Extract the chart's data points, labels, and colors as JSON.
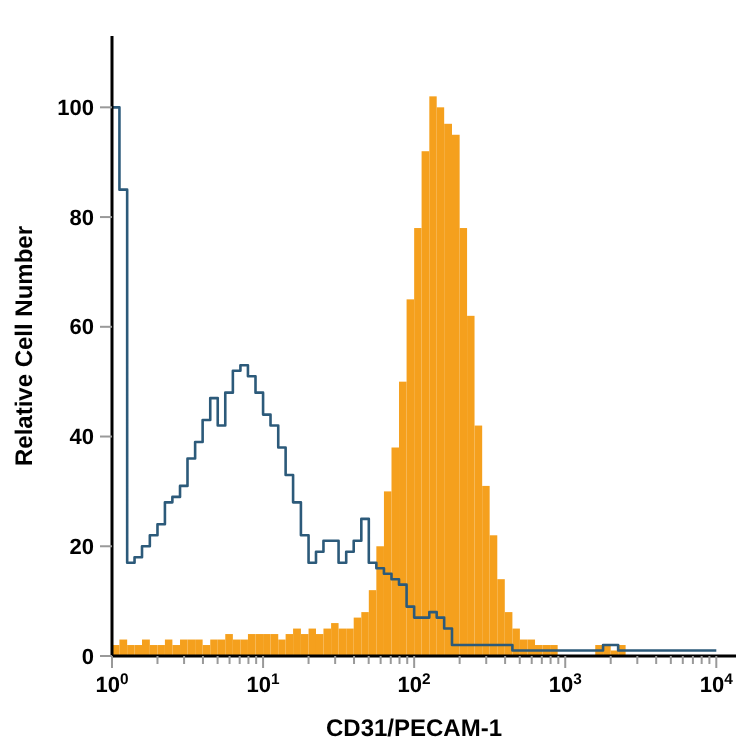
{
  "chart_data": {
    "type": "histogram",
    "xlabel": "CD31/PECAM-1",
    "ylabel": "Relative Cell Number",
    "log": "x",
    "xlim": [
      1,
      13500
    ],
    "ylim": [
      0,
      113
    ],
    "xticks": [
      {
        "value": 1,
        "label": "10$^{0}$"
      },
      {
        "value": 10,
        "label": "10$^{1}$"
      },
      {
        "value": 100,
        "label": "10$^{2}$"
      },
      {
        "value": 1000,
        "label": "10$^{3}$"
      },
      {
        "value": 10000,
        "label": "10$^{4}$"
      },
      {
        "value": 2,
        "label": null
      },
      {
        "value": 3,
        "label": null
      },
      {
        "value": 4,
        "label": null
      },
      {
        "value": 5,
        "label": null
      },
      {
        "value": 6,
        "label": null
      },
      {
        "value": 7,
        "label": null
      },
      {
        "value": 8,
        "label": null
      },
      {
        "value": 9,
        "label": null
      },
      {
        "value": 20,
        "label": null
      },
      {
        "value": 30,
        "label": null
      },
      {
        "value": 40,
        "label": null
      },
      {
        "value": 50,
        "label": null
      },
      {
        "value": 60,
        "label": null
      },
      {
        "value": 70,
        "label": null
      },
      {
        "value": 80,
        "label": null
      },
      {
        "value": 90,
        "label": null
      },
      {
        "value": 200,
        "label": null
      },
      {
        "value": 300,
        "label": null
      },
      {
        "value": 400,
        "label": null
      },
      {
        "value": 500,
        "label": null
      },
      {
        "value": 600,
        "label": null
      },
      {
        "value": 700,
        "label": null
      },
      {
        "value": 800,
        "label": null
      },
      {
        "value": 900,
        "label": null
      },
      {
        "value": 2000,
        "label": null
      },
      {
        "value": 3000,
        "label": null
      },
      {
        "value": 4000,
        "label": null
      },
      {
        "value": 5000,
        "label": null
      },
      {
        "value": 6000,
        "label": null
      },
      {
        "value": 7000,
        "label": null
      },
      {
        "value": 8000,
        "label": null
      },
      {
        "value": 9000,
        "label": null
      }
    ],
    "yticks": [
      0,
      20,
      40,
      60,
      80,
      100
    ],
    "bins": [
      1,
      1.12,
      1.26,
      1.41,
      1.58,
      1.78,
      2,
      2.24,
      2.51,
      2.82,
      3.16,
      3.55,
      3.98,
      4.47,
      5.01,
      5.62,
      6.31,
      7.08,
      7.94,
      8.91,
      10,
      11.2,
      12.6,
      14.1,
      15.8,
      17.8,
      20,
      22.4,
      25.1,
      28.2,
      31.6,
      35.5,
      39.8,
      44.7,
      50.1,
      56.2,
      63.1,
      70.8,
      79.4,
      89.1,
      100,
      112,
      126,
      141,
      158,
      178,
      200,
      224,
      251,
      282,
      316,
      355,
      398,
      447,
      501,
      562,
      631,
      708,
      794,
      891,
      1000,
      1120,
      1260,
      1410,
      1580,
      1780,
      2000,
      2240,
      2510,
      2820,
      3160,
      3550,
      3980,
      4470,
      5010,
      5620,
      6310,
      7080,
      7940,
      8910,
      10000
    ],
    "series": [
      {
        "color": "#f5a01d",
        "values": [
          2,
          3,
          2,
          2,
          3,
          2,
          2,
          3,
          2,
          3,
          3,
          3,
          2,
          3,
          3,
          4,
          3,
          3,
          4,
          4,
          4,
          4,
          3,
          4,
          5,
          4,
          5,
          4,
          5,
          6,
          5,
          5,
          7,
          8,
          12,
          20,
          30,
          38,
          50,
          65,
          78,
          92,
          102,
          100,
          97,
          95,
          78,
          62,
          42,
          31,
          22,
          14,
          8,
          5,
          3,
          3,
          2,
          2,
          2,
          0,
          0,
          0,
          0,
          0,
          2,
          2,
          1,
          2,
          0,
          0,
          0,
          0,
          0,
          0,
          0,
          0,
          0,
          0,
          0,
          0
        ]
      },
      {
        "type": "step",
        "color": "#2c5a7a",
        "x": [
          1,
          1.12,
          1.26,
          1.41,
          1.58,
          1.78,
          2,
          2.24,
          2.51,
          2.82,
          3.16,
          3.55,
          3.98,
          4.47,
          5.01,
          5.62,
          6.31,
          7.08,
          7.94,
          8.91,
          10,
          11.2,
          12.6,
          14.1,
          15.8,
          17.8,
          20,
          22.4,
          25.1,
          28.2,
          31.6,
          35.5,
          39.8,
          44.7,
          50.1,
          56.2,
          63.1,
          70.8,
          79.4,
          89.1,
          100,
          112,
          126,
          141,
          158,
          178,
          200,
          224,
          251,
          282,
          316,
          355,
          398,
          447,
          501,
          562,
          631,
          708,
          794,
          891,
          1000,
          1120,
          1260,
          1410,
          1580,
          1780,
          2000,
          2240,
          2510,
          2820,
          3160,
          3550,
          3980,
          4470,
          5010,
          5620,
          6310,
          7080,
          7940,
          8910,
          10000
        ],
        "values": [
          100,
          85,
          17,
          18,
          20,
          22,
          24,
          28,
          29,
          31,
          36,
          39,
          43,
          47,
          42,
          48,
          52,
          53,
          51,
          48,
          44,
          42,
          38,
          33,
          28,
          22,
          17,
          19,
          21,
          21,
          17,
          19,
          21,
          25,
          17,
          16,
          15,
          14,
          13,
          9,
          7,
          7,
          8,
          7,
          5,
          2,
          2,
          2,
          2,
          2,
          2,
          2,
          2,
          1,
          1,
          1,
          1,
          1,
          1,
          1,
          1,
          1,
          1,
          1,
          1,
          2,
          2,
          1,
          1,
          1,
          1,
          1,
          1,
          1,
          1,
          1,
          1,
          1,
          1,
          1,
          1
        ]
      }
    ]
  }
}
